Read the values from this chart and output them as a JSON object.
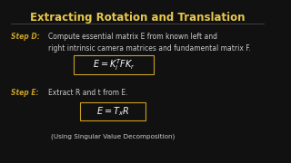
{
  "title": "Extracting Rotation and Translation",
  "title_color": "#e8c84a",
  "background_color": "#111111",
  "step_d_label": "Step D:",
  "step_d_label_color": "#c8a020",
  "step_d_text": "Compute essential matrix E from known left and\nright intrinsic camera matrices and fundamental matrix F.",
  "step_d_text_color": "#cccccc",
  "formula1": "$E = K_l^T F K_r$",
  "formula1_color": "#ffffff",
  "formula1_box_color": "#c8a020",
  "step_e_label": "Step E:",
  "step_e_label_color": "#c8a020",
  "step_e_text": "Extract R and t from E.",
  "step_e_text_color": "#cccccc",
  "formula2": "$E = T_x R$",
  "formula2_color": "#ffffff",
  "formula2_box_color": "#c8a020",
  "note_text": "(Using Singular Value Decomposition)",
  "note_color": "#cccccc",
  "separator_color": "#555555"
}
